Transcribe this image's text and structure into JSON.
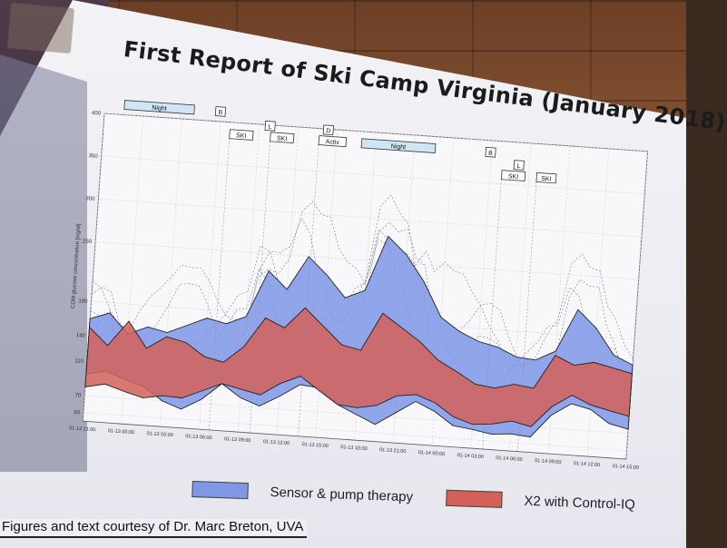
{
  "slide": {
    "title": "First Report of Ski Camp Virginia (January 2018)",
    "footer": "Figures and text courtesy of Dr. Marc Breton, UVA"
  },
  "legend": [
    {
      "label": "Sensor & pump therapy",
      "color": "#7f97e6"
    },
    {
      "label": "X2 with Control-IQ",
      "color": "#d4605a"
    }
  ],
  "chart_data": {
    "type": "area",
    "ylabel": "CGM glucose concentration [mg/dl]",
    "yticks": [
      50,
      70,
      110,
      140,
      180,
      250,
      300,
      350,
      400
    ],
    "xticks": [
      "01-12 21:00",
      "01-13 00:00",
      "01-13 03:00",
      "01-13 06:00",
      "01-13 09:00",
      "01-13 12:00",
      "01-13 15:00",
      "01-13 18:00",
      "01-13 21:00",
      "01-14 00:00",
      "01-14 03:00",
      "01-14 06:00",
      "01-14 09:00",
      "01-14 12:00",
      "01-14 15:00"
    ],
    "grid": true,
    "legend_position": "bottom",
    "series": [
      {
        "name": "Sensor & pump therapy",
        "color": "#7f97e6",
        "x": [
          0,
          1,
          2,
          3,
          4,
          5,
          6,
          7,
          8,
          9,
          10,
          11,
          12,
          13,
          14,
          15,
          16,
          17,
          18,
          19,
          20,
          21,
          22,
          23,
          24,
          25,
          26,
          27,
          28
        ],
        "low": [
          95,
          100,
          92,
          85,
          70,
          62,
          75,
          95,
          80,
          72,
          85,
          100,
          98,
          80,
          70,
          60,
          75,
          90,
          80,
          65,
          62,
          58,
          60,
          58,
          85,
          100,
          95,
          80,
          75
        ],
        "high": [
          160,
          168,
          145,
          155,
          150,
          160,
          170,
          165,
          175,
          230,
          210,
          250,
          230,
          205,
          215,
          280,
          260,
          230,
          190,
          175,
          165,
          160,
          150,
          148,
          160,
          210,
          190,
          160,
          150
        ]
      },
      {
        "name": "X2 with Control-IQ",
        "color": "#d4605a",
        "x": [
          0,
          1,
          2,
          3,
          4,
          5,
          6,
          7,
          8,
          9,
          10,
          11,
          12,
          13,
          14,
          15,
          16,
          17,
          18,
          19,
          20,
          21,
          22,
          23,
          24,
          25,
          26,
          27,
          28
        ],
        "low": [
          80,
          85,
          78,
          72,
          76,
          75,
          85,
          95,
          90,
          85,
          100,
          110,
          95,
          80,
          78,
          82,
          95,
          98,
          90,
          75,
          68,
          70,
          75,
          70,
          95,
          110,
          100,
          95,
          90
        ],
        "high": [
          150,
          130,
          160,
          130,
          145,
          140,
          125,
          120,
          140,
          175,
          165,
          190,
          170,
          150,
          145,
          190,
          175,
          160,
          140,
          128,
          115,
          112,
          118,
          115,
          155,
          145,
          150,
          145,
          140
        ]
      }
    ],
    "annotations": [
      {
        "label": "Night",
        "x0": 1.0,
        "x1": 4.6,
        "row": 0
      },
      {
        "label": "B",
        "x0": 5.7,
        "x1": 6.2,
        "row": 0
      },
      {
        "label": "L",
        "x0": 8.3,
        "x1": 8.8,
        "row": 1
      },
      {
        "label": "D",
        "x0": 11.3,
        "x1": 11.8,
        "row": 1
      },
      {
        "label": "SKI",
        "x0": 6.5,
        "x1": 7.7,
        "row": 2
      },
      {
        "label": "SKI",
        "x0": 8.6,
        "x1": 9.8,
        "row": 2
      },
      {
        "label": "Activ",
        "x0": 11.1,
        "x1": 12.5,
        "row": 2
      },
      {
        "label": "Night",
        "x0": 13.3,
        "x1": 17.1,
        "row": 2
      },
      {
        "label": "B",
        "x0": 19.7,
        "x1": 20.2,
        "row": 2
      },
      {
        "label": "L",
        "x0": 21.2,
        "x1": 21.7,
        "row": 3
      },
      {
        "label": "SKI",
        "x0": 20.6,
        "x1": 21.8,
        "row": 4
      },
      {
        "label": "SKI",
        "x0": 22.4,
        "x1": 23.4,
        "row": 4
      }
    ],
    "xlim": [
      0,
      28
    ],
    "ylim": [
      40,
      400
    ]
  }
}
